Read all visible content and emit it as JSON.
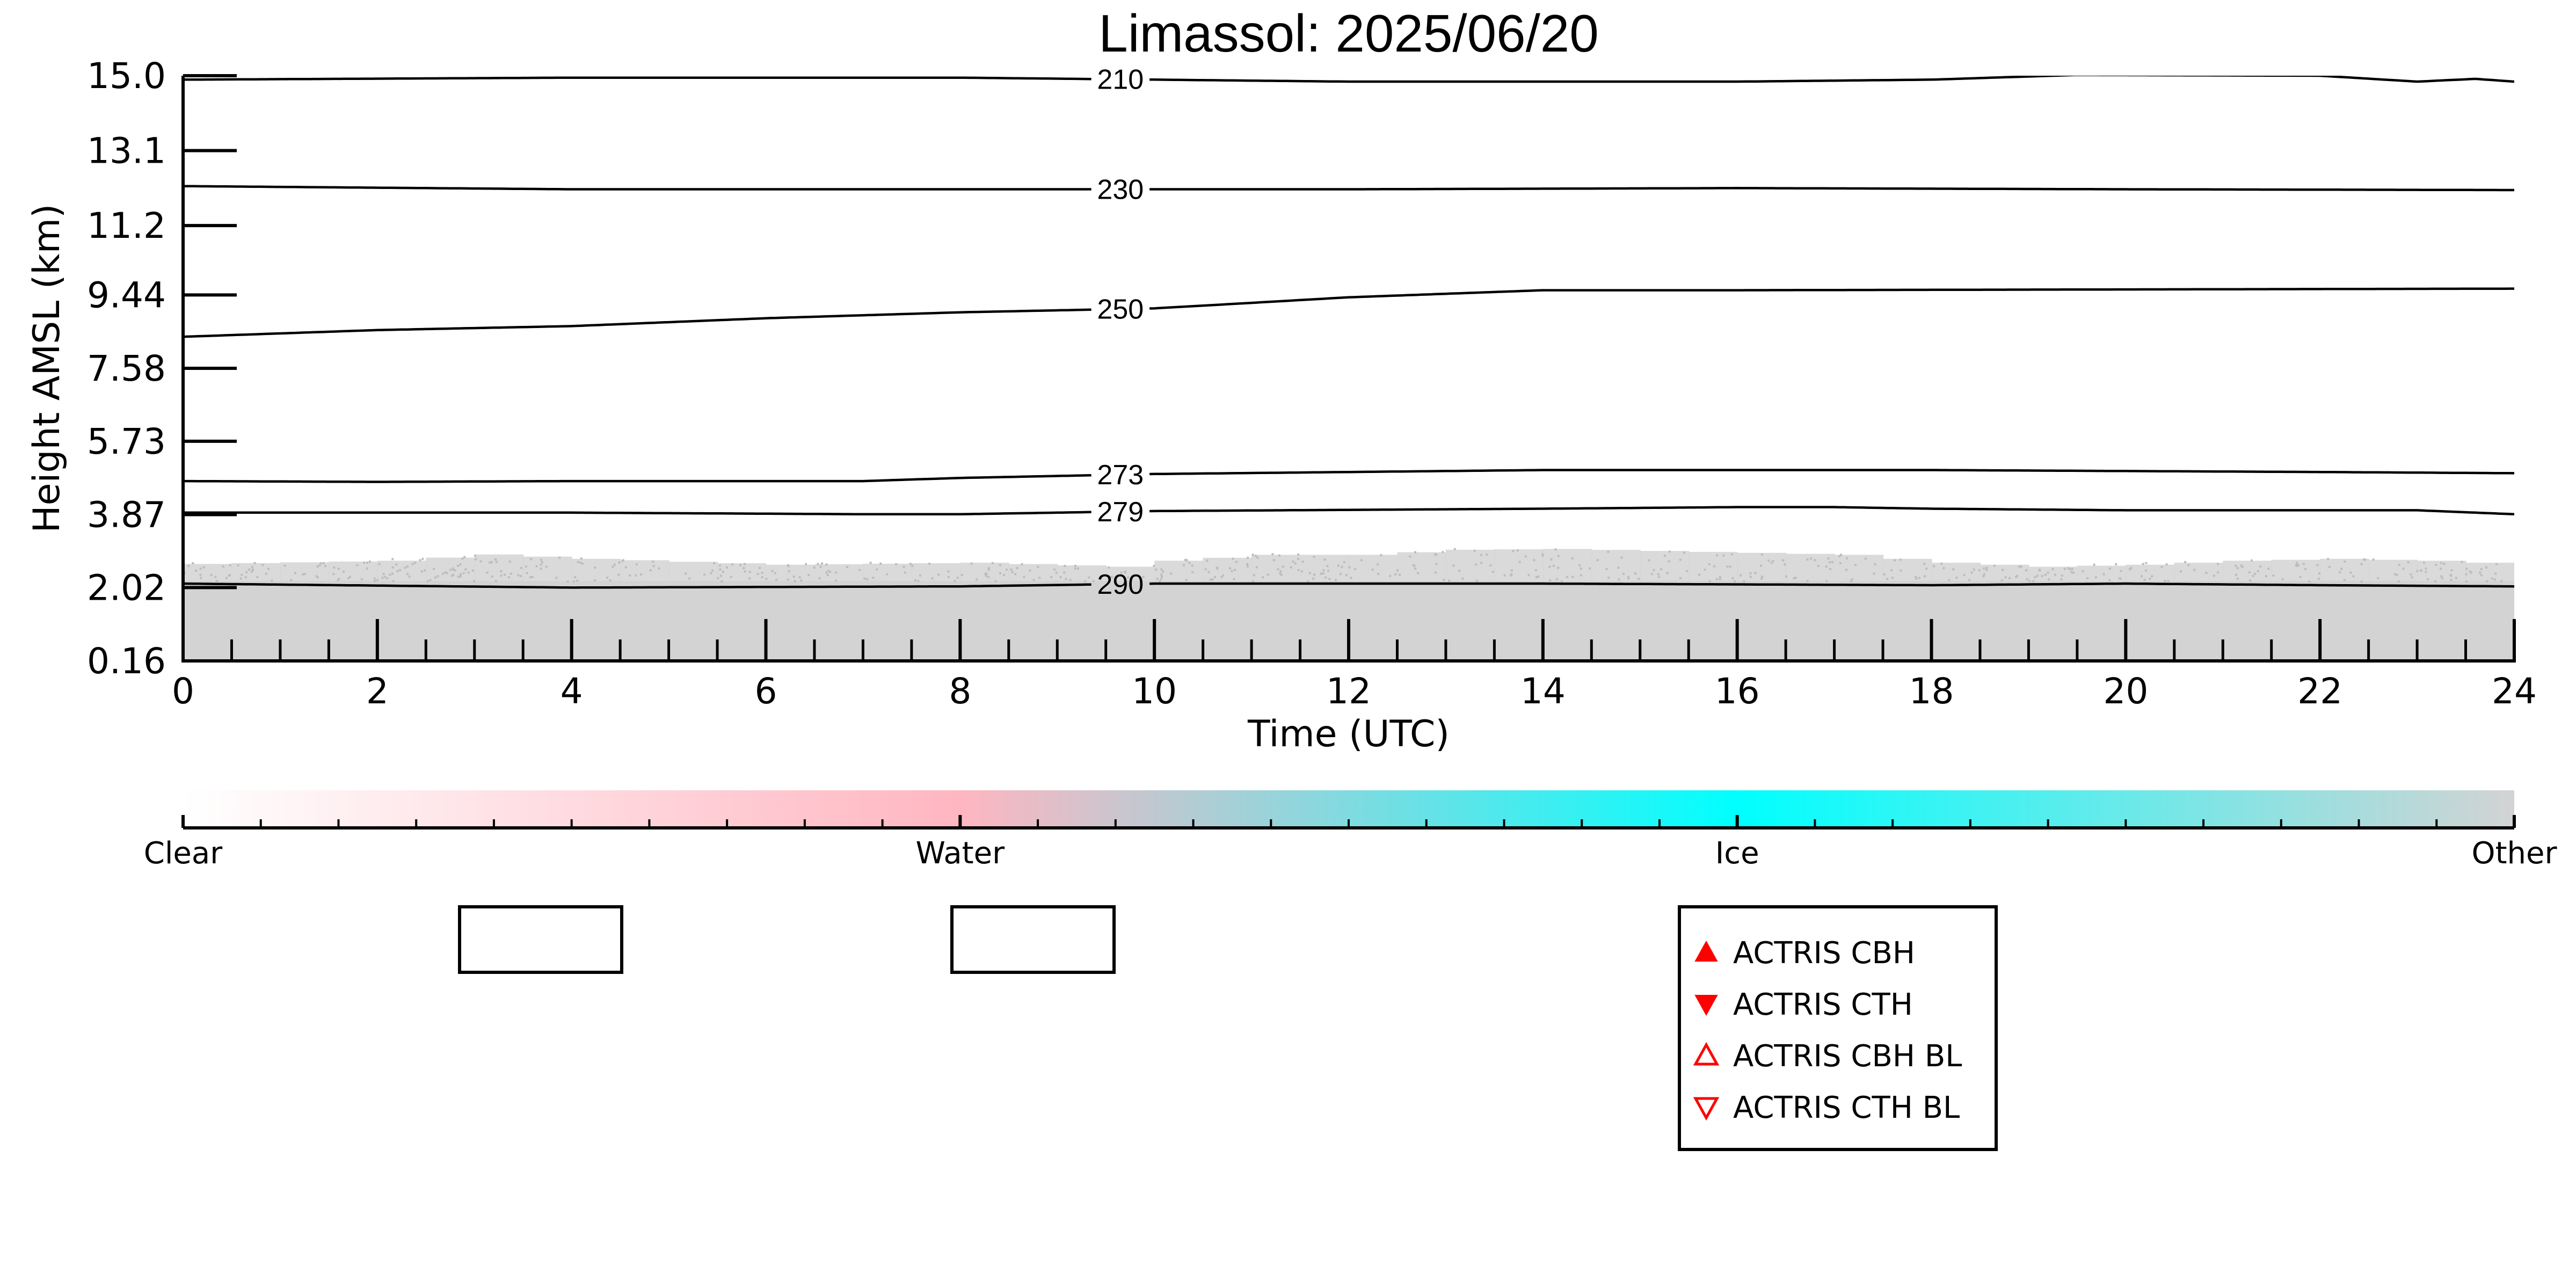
{
  "chart_data": {
    "type": "heatmap",
    "title": "Limassol: 2025/06/20",
    "xlabel": "Time (UTC)",
    "ylabel": "Height AMSL (km)",
    "xlim": [
      0,
      24
    ],
    "x_ticks": [
      "0",
      "2",
      "4",
      "6",
      "8",
      "10",
      "12",
      "14",
      "16",
      "18",
      "20",
      "22",
      "24"
    ],
    "y_ticks": [
      "0.16",
      "2.02",
      "3.87",
      "5.73",
      "7.58",
      "9.44",
      "11.2",
      "13.1",
      "15.0"
    ],
    "ylim": [
      0.16,
      15.0
    ],
    "fill": {
      "category": "Other",
      "color": "#d3d3d3",
      "base_top_km": 2.2,
      "speckle_top_km": [
        [
          0,
          2.62
        ],
        [
          2,
          2.7
        ],
        [
          3,
          2.86
        ],
        [
          4,
          2.75
        ],
        [
          6,
          2.6
        ],
        [
          8,
          2.65
        ],
        [
          9.5,
          2.55
        ],
        [
          10,
          2.7
        ],
        [
          11,
          2.85
        ],
        [
          12,
          2.85
        ],
        [
          13,
          2.98
        ],
        [
          14,
          3.0
        ],
        [
          15,
          2.95
        ],
        [
          16,
          2.9
        ],
        [
          17,
          2.85
        ],
        [
          18,
          2.65
        ],
        [
          19,
          2.55
        ],
        [
          20,
          2.6
        ],
        [
          21,
          2.7
        ],
        [
          22,
          2.75
        ],
        [
          23,
          2.7
        ],
        [
          24,
          2.6
        ]
      ]
    },
    "temperature_contours": [
      {
        "label": "210",
        "points": [
          [
            0,
            14.9
          ],
          [
            4,
            14.95
          ],
          [
            8,
            14.95
          ],
          [
            12,
            14.85
          ],
          [
            16,
            14.85
          ],
          [
            18,
            14.9
          ],
          [
            19.5,
            15.02
          ],
          [
            22,
            15.0
          ],
          [
            23,
            14.85
          ],
          [
            23.6,
            14.92
          ],
          [
            24,
            14.85
          ]
        ]
      },
      {
        "label": "230",
        "points": [
          [
            0,
            12.2
          ],
          [
            4,
            12.12
          ],
          [
            8,
            12.12
          ],
          [
            12,
            12.12
          ],
          [
            16,
            12.15
          ],
          [
            20,
            12.12
          ],
          [
            24,
            12.1
          ]
        ]
      },
      {
        "label": "250",
        "points": [
          [
            0,
            8.38
          ],
          [
            2,
            8.55
          ],
          [
            4,
            8.65
          ],
          [
            6,
            8.85
          ],
          [
            8,
            9.0
          ],
          [
            10,
            9.1
          ],
          [
            12,
            9.38
          ],
          [
            14,
            9.56
          ],
          [
            16,
            9.56
          ],
          [
            20,
            9.58
          ],
          [
            24,
            9.6
          ]
        ]
      },
      {
        "label": "273",
        "points": [
          [
            0,
            4.72
          ],
          [
            2,
            4.7
          ],
          [
            4,
            4.72
          ],
          [
            7,
            4.72
          ],
          [
            8,
            4.8
          ],
          [
            10,
            4.9
          ],
          [
            14,
            5.0
          ],
          [
            18,
            5.0
          ],
          [
            22,
            4.95
          ],
          [
            24,
            4.92
          ]
        ]
      },
      {
        "label": "279",
        "points": [
          [
            0,
            3.92
          ],
          [
            4,
            3.92
          ],
          [
            7,
            3.88
          ],
          [
            8,
            3.88
          ],
          [
            10,
            3.96
          ],
          [
            14,
            4.02
          ],
          [
            16,
            4.06
          ],
          [
            17,
            4.06
          ],
          [
            18,
            4.02
          ],
          [
            20,
            3.98
          ],
          [
            23,
            3.98
          ],
          [
            24,
            3.88
          ]
        ]
      },
      {
        "label": "290",
        "points": [
          [
            0,
            2.12
          ],
          [
            4,
            2.02
          ],
          [
            8,
            2.05
          ],
          [
            10,
            2.12
          ],
          [
            14,
            2.12
          ],
          [
            16,
            2.1
          ],
          [
            18,
            2.08
          ],
          [
            20,
            2.12
          ],
          [
            22,
            2.08
          ],
          [
            24,
            2.05
          ]
        ]
      }
    ],
    "colorbar": {
      "labels": [
        "Clear",
        "Water",
        "Ice",
        "Other"
      ],
      "colors": [
        "#ffffff",
        "#ffb6c1",
        "#00ffff",
        "#d3d3d3"
      ]
    },
    "legend": {
      "placement": "bottom",
      "entries": [
        {
          "label": "ACTRIS CBH",
          "marker": "triangle-up-filled",
          "color": "#ff0000"
        },
        {
          "label": "ACTRIS CTH",
          "marker": "triangle-down-filled",
          "color": "#ff0000"
        },
        {
          "label": "ACTRIS CBH BL",
          "marker": "triangle-up-open",
          "color": "#ff0000"
        },
        {
          "label": "ACTRIS CTH BL",
          "marker": "triangle-down-open",
          "color": "#ff0000"
        }
      ],
      "empty_boxes": 2
    }
  }
}
